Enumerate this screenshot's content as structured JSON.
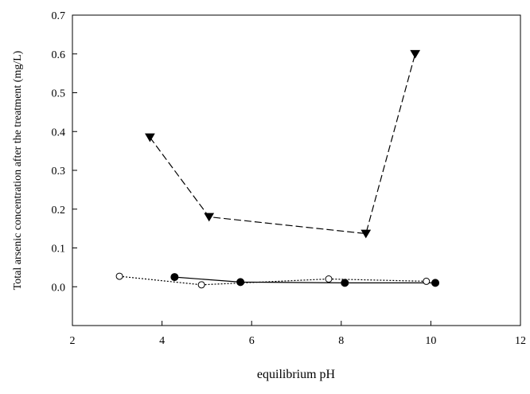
{
  "chart_data": {
    "type": "scatter",
    "title": "",
    "xlabel": "equilibrium pH",
    "ylabel": "Total arsenic concentration after the treatment (mg/L)",
    "xlim": [
      2,
      12
    ],
    "ylim": [
      -0.1,
      0.7
    ],
    "xticks": [
      2,
      4,
      6,
      8,
      10,
      12
    ],
    "yticks": [
      0.0,
      0.1,
      0.2,
      0.3,
      0.4,
      0.5,
      0.6,
      0.7
    ],
    "ytick_labels": [
      "0.0",
      "0.1",
      "0.2",
      "0.3",
      "0.4",
      "0.5",
      "0.6",
      "0.7"
    ],
    "grid": false,
    "legend": "none",
    "series": [
      {
        "marker": "triangle-down-filled",
        "line_style": "long-dash",
        "color": "#000000",
        "x": [
          3.73,
          5.05,
          8.55,
          9.65
        ],
        "y": [
          0.385,
          0.18,
          0.137,
          0.6
        ]
      },
      {
        "marker": "circle-filled",
        "line_style": "solid",
        "color": "#000000",
        "x": [
          4.28,
          5.75,
          8.08,
          10.1
        ],
        "y": [
          0.025,
          0.012,
          0.01,
          0.01
        ]
      },
      {
        "marker": "circle-open",
        "line_style": "dotted",
        "color": "#000000",
        "x": [
          3.05,
          4.88,
          7.72,
          9.9
        ],
        "y": [
          0.027,
          0.005,
          0.02,
          0.014
        ]
      }
    ]
  }
}
